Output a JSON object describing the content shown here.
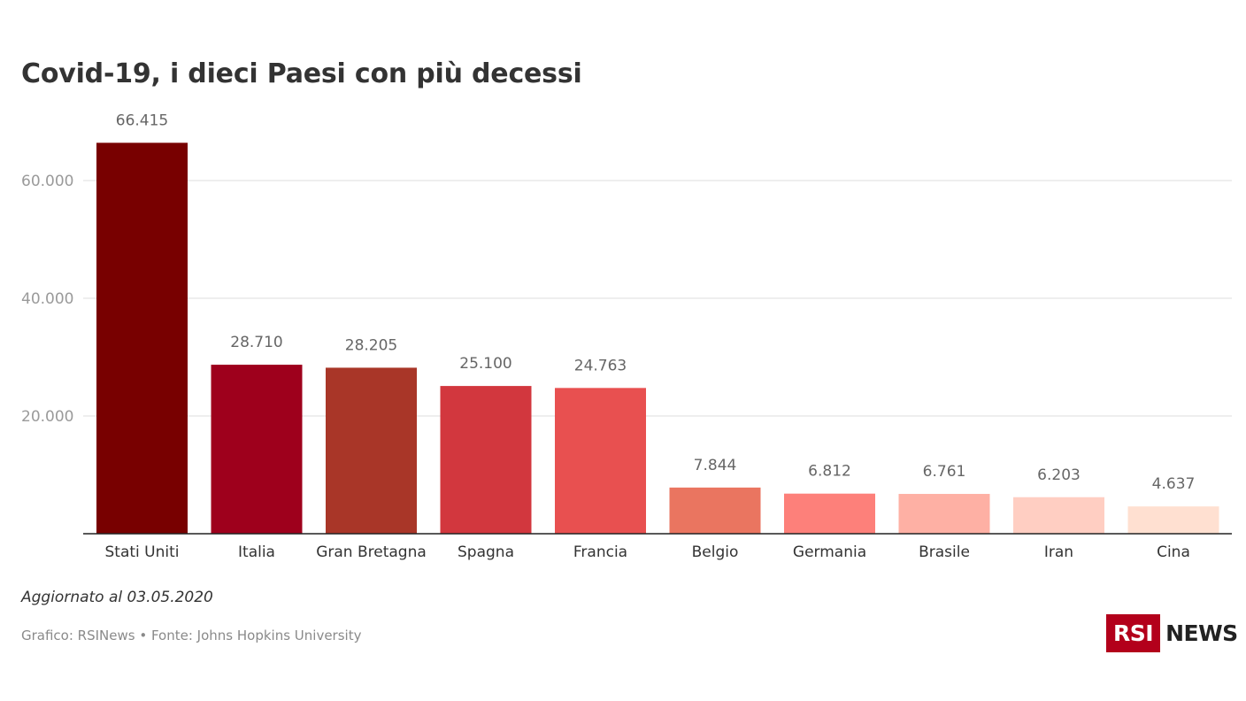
{
  "chart_data": {
    "type": "bar",
    "title": "Covid-19, i dieci Paesi con più decessi",
    "categories": [
      "Stati Uniti",
      "Italia",
      "Gran Bretagna",
      "Spagna",
      "Francia",
      "Belgio",
      "Germania",
      "Brasile",
      "Iran",
      "Cina"
    ],
    "values": [
      66415,
      28710,
      28205,
      25100,
      24763,
      7844,
      6812,
      6761,
      6203,
      4637
    ],
    "value_labels": [
      "66.415",
      "28.710",
      "28.205",
      "25.100",
      "24.763",
      "7.844",
      "6.812",
      "6.761",
      "6.203",
      "4.637"
    ],
    "colors": [
      "#780000",
      "#9e001c",
      "#a93628",
      "#d2373e",
      "#e85050",
      "#ea7560",
      "#fd807a",
      "#feb0a4",
      "#ffcec2",
      "#ffe0d1"
    ],
    "yticks": [
      20000,
      40000,
      60000
    ],
    "ytick_labels": [
      "20.000",
      "40.000",
      "60.000"
    ],
    "ylim": [
      0,
      70000
    ],
    "grid": true,
    "xlabel": "",
    "ylabel": ""
  },
  "footer": {
    "note": "Aggiornato al 03.05.2020",
    "source": "Grafico: RSINews • Fonte: Johns Hopkins University"
  },
  "logo": {
    "box_text": "RSI",
    "text": "NEWS"
  }
}
